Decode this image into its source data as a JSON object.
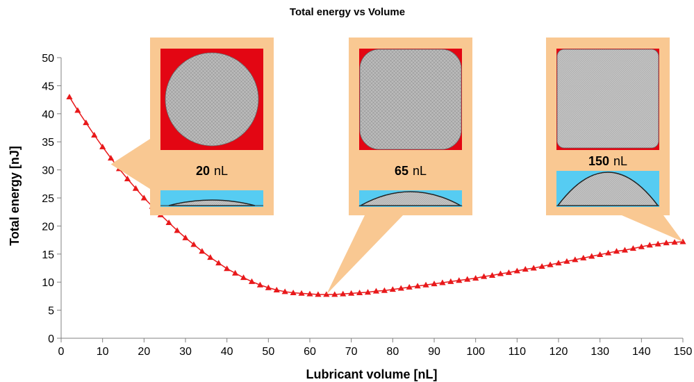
{
  "chart_data": {
    "type": "scatter",
    "title": "Total energy vs Volume",
    "xlabel": "Lubricant volume [nL]",
    "ylabel": "Total energy [nJ]",
    "xlim": [
      0,
      150
    ],
    "ylim": [
      0,
      50
    ],
    "x_ticks": [
      "0",
      "10",
      "20",
      "30",
      "40",
      "50",
      "60",
      "70",
      "80",
      "90",
      "100",
      "110",
      "120",
      "130",
      "140",
      "150"
    ],
    "y_ticks": [
      "0",
      "5",
      "10",
      "15",
      "20",
      "25",
      "30",
      "35",
      "40",
      "45",
      "50"
    ],
    "grid": false,
    "marker": "triangle",
    "series_color": "#e8191b",
    "series": [
      {
        "name": "",
        "points": [
          [
            2,
            43.0
          ],
          [
            4,
            40.6
          ],
          [
            6,
            38.4
          ],
          [
            8,
            36.2
          ],
          [
            10,
            34.1
          ],
          [
            12,
            32.1
          ],
          [
            14,
            30.2
          ],
          [
            16,
            28.4
          ],
          [
            18,
            26.7
          ],
          [
            20,
            25.0
          ],
          [
            22,
            23.5
          ],
          [
            24,
            22.0
          ],
          [
            26,
            20.6
          ],
          [
            28,
            19.2
          ],
          [
            30,
            17.9
          ],
          [
            32,
            16.7
          ],
          [
            34,
            15.5
          ],
          [
            36,
            14.4
          ],
          [
            38,
            13.4
          ],
          [
            40,
            12.4
          ],
          [
            42,
            11.6
          ],
          [
            44,
            10.8
          ],
          [
            46,
            10.1
          ],
          [
            48,
            9.5
          ],
          [
            50,
            9.0
          ],
          [
            52,
            8.6
          ],
          [
            54,
            8.3
          ],
          [
            56,
            8.1
          ],
          [
            58,
            8.0
          ],
          [
            60,
            7.9
          ],
          [
            62,
            7.8
          ],
          [
            64,
            7.8
          ],
          [
            66,
            7.8
          ],
          [
            68,
            7.9
          ],
          [
            70,
            8.0
          ],
          [
            72,
            8.1
          ],
          [
            74,
            8.2
          ],
          [
            76,
            8.4
          ],
          [
            78,
            8.5
          ],
          [
            80,
            8.7
          ],
          [
            82,
            8.9
          ],
          [
            84,
            9.1
          ],
          [
            86,
            9.3
          ],
          [
            88,
            9.5
          ],
          [
            90,
            9.7
          ],
          [
            92,
            9.9
          ],
          [
            94,
            10.1
          ],
          [
            96,
            10.3
          ],
          [
            98,
            10.5
          ],
          [
            100,
            10.7
          ],
          [
            102,
            11.0
          ],
          [
            104,
            11.2
          ],
          [
            106,
            11.5
          ],
          [
            108,
            11.7
          ],
          [
            110,
            12.0
          ],
          [
            112,
            12.3
          ],
          [
            114,
            12.5
          ],
          [
            116,
            12.8
          ],
          [
            118,
            13.1
          ],
          [
            120,
            13.4
          ],
          [
            122,
            13.7
          ],
          [
            124,
            14.0
          ],
          [
            126,
            14.3
          ],
          [
            128,
            14.6
          ],
          [
            130,
            14.9
          ],
          [
            132,
            15.2
          ],
          [
            134,
            15.5
          ],
          [
            136,
            15.7
          ],
          [
            138,
            16.0
          ],
          [
            140,
            16.3
          ],
          [
            142,
            16.6
          ],
          [
            144,
            16.8
          ],
          [
            146,
            17.0
          ],
          [
            148,
            17.1
          ],
          [
            150,
            17.2
          ]
        ]
      }
    ]
  },
  "insets": [
    {
      "value": "20",
      "unit": "nL",
      "anchor": [
        12,
        31
      ],
      "shape": "circle",
      "profile": "low"
    },
    {
      "value": "65",
      "unit": "nL",
      "anchor": [
        64,
        7.8
      ],
      "shape": "rounded-square",
      "profile": "medium"
    },
    {
      "value": "150",
      "unit": "nL",
      "anchor": [
        150,
        17.2
      ],
      "shape": "square",
      "profile": "high"
    }
  ],
  "colors": {
    "callout": "#f9c892",
    "substrate": "#e30613",
    "side_view": "#56ccf2",
    "droplet": "#bdbdbd"
  }
}
